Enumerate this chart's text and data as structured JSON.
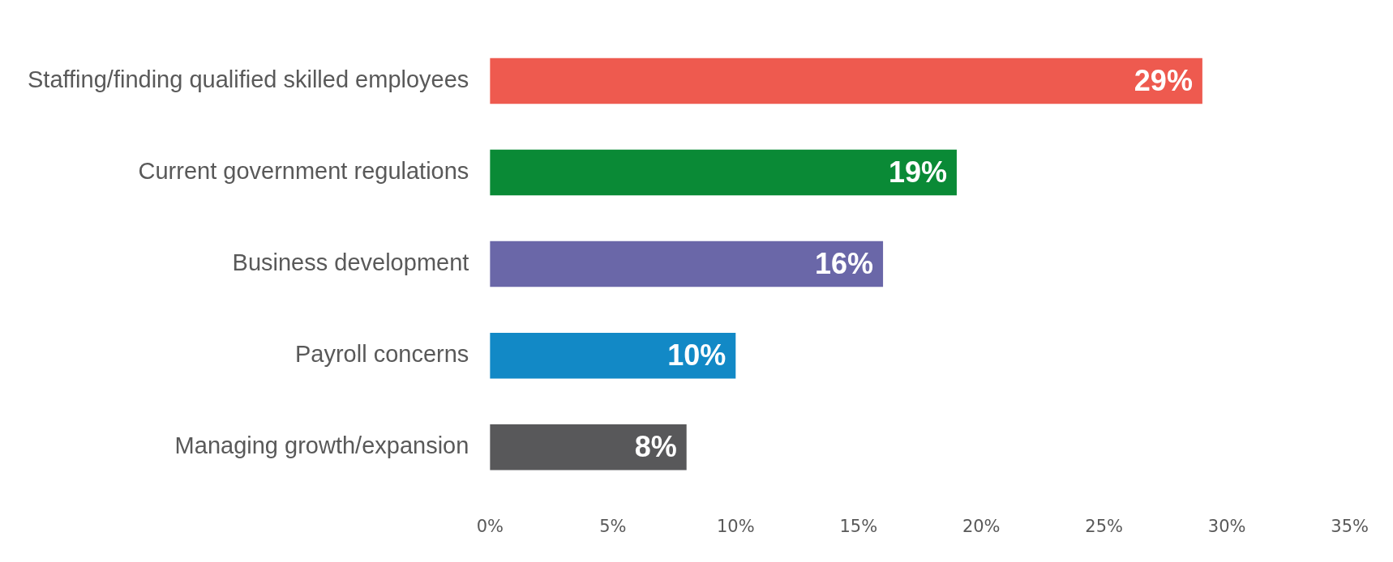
{
  "chart_data": {
    "type": "bar",
    "orientation": "horizontal",
    "categories": [
      "Staffing/finding qualified skilled employees",
      "Current government regulations",
      "Business development",
      "Payroll concerns",
      "Managing growth/expansion"
    ],
    "values": [
      29,
      19,
      16,
      10,
      8
    ],
    "colors": [
      "#ee5a4f",
      "#0a8a36",
      "#6a67a8",
      "#1289c6",
      "#58585a"
    ],
    "value_labels": [
      "29%",
      "19%",
      "16%",
      "10%",
      "8%"
    ],
    "xlim": [
      0,
      35
    ],
    "xticks": [
      {
        "value": 0,
        "label": "0%"
      },
      {
        "value": 5,
        "label": "5%"
      },
      {
        "value": 10,
        "label": "10%"
      },
      {
        "value": 15,
        "label": "15%"
      },
      {
        "value": 20,
        "label": "20%"
      },
      {
        "value": 25,
        "label": "25%"
      },
      {
        "value": 30,
        "label": "30%"
      },
      {
        "value": 35,
        "label": "35%"
      }
    ],
    "grid": false,
    "legend": false
  }
}
